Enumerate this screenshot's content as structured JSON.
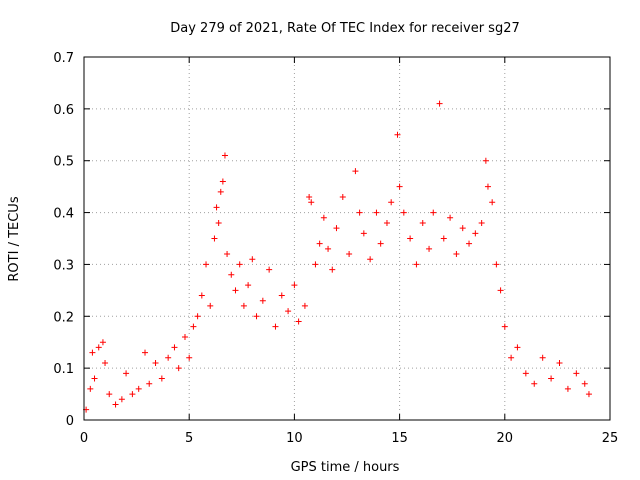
{
  "chart_data": {
    "type": "scatter",
    "title": "Day 279 of 2021, Rate Of TEC Index for receiver sg27",
    "xlabel": "GPS time / hours",
    "ylabel": "ROTI / TECUs",
    "xlim": [
      0,
      25
    ],
    "ylim": [
      0,
      0.7
    ],
    "xticks": [
      "0",
      "5",
      "10",
      "15",
      "20",
      "25"
    ],
    "yticks": [
      "0",
      "0.1",
      "0.2",
      "0.3",
      "0.4",
      "0.5",
      "0.6",
      "0.7"
    ],
    "grid": true,
    "marker": "+",
    "color": "#ff0000",
    "series": [
      {
        "name": "",
        "points": [
          [
            0.1,
            0.02
          ],
          [
            0.3,
            0.06
          ],
          [
            0.4,
            0.13
          ],
          [
            0.5,
            0.08
          ],
          [
            0.7,
            0.14
          ],
          [
            0.9,
            0.15
          ],
          [
            1.0,
            0.11
          ],
          [
            1.2,
            0.05
          ],
          [
            1.5,
            0.03
          ],
          [
            1.8,
            0.04
          ],
          [
            2.0,
            0.09
          ],
          [
            2.3,
            0.05
          ],
          [
            2.6,
            0.06
          ],
          [
            2.9,
            0.13
          ],
          [
            3.1,
            0.07
          ],
          [
            3.4,
            0.11
          ],
          [
            3.7,
            0.08
          ],
          [
            4.0,
            0.12
          ],
          [
            4.3,
            0.14
          ],
          [
            4.5,
            0.1
          ],
          [
            4.8,
            0.16
          ],
          [
            5.0,
            0.12
          ],
          [
            5.2,
            0.18
          ],
          [
            5.4,
            0.2
          ],
          [
            5.6,
            0.24
          ],
          [
            5.8,
            0.3
          ],
          [
            6.0,
            0.22
          ],
          [
            6.2,
            0.35
          ],
          [
            6.3,
            0.41
          ],
          [
            6.4,
            0.38
          ],
          [
            6.5,
            0.44
          ],
          [
            6.6,
            0.46
          ],
          [
            6.7,
            0.51
          ],
          [
            6.8,
            0.32
          ],
          [
            7.0,
            0.28
          ],
          [
            7.2,
            0.25
          ],
          [
            7.4,
            0.3
          ],
          [
            7.6,
            0.22
          ],
          [
            7.8,
            0.26
          ],
          [
            8.0,
            0.31
          ],
          [
            8.2,
            0.2
          ],
          [
            8.5,
            0.23
          ],
          [
            8.8,
            0.29
          ],
          [
            9.1,
            0.18
          ],
          [
            9.4,
            0.24
          ],
          [
            9.7,
            0.21
          ],
          [
            10.0,
            0.26
          ],
          [
            10.2,
            0.19
          ],
          [
            10.5,
            0.22
          ],
          [
            10.7,
            0.43
          ],
          [
            10.8,
            0.42
          ],
          [
            11.0,
            0.3
          ],
          [
            11.2,
            0.34
          ],
          [
            11.4,
            0.39
          ],
          [
            11.6,
            0.33
          ],
          [
            11.8,
            0.29
          ],
          [
            12.0,
            0.37
          ],
          [
            12.3,
            0.43
          ],
          [
            12.6,
            0.32
          ],
          [
            12.9,
            0.48
          ],
          [
            13.1,
            0.4
          ],
          [
            13.3,
            0.36
          ],
          [
            13.6,
            0.31
          ],
          [
            13.9,
            0.4
          ],
          [
            14.1,
            0.34
          ],
          [
            14.4,
            0.38
          ],
          [
            14.6,
            0.42
          ],
          [
            14.9,
            0.55
          ],
          [
            15.0,
            0.45
          ],
          [
            15.2,
            0.4
          ],
          [
            15.5,
            0.35
          ],
          [
            15.8,
            0.3
          ],
          [
            16.1,
            0.38
          ],
          [
            16.4,
            0.33
          ],
          [
            16.6,
            0.4
          ],
          [
            16.9,
            0.61
          ],
          [
            17.1,
            0.35
          ],
          [
            17.4,
            0.39
          ],
          [
            17.7,
            0.32
          ],
          [
            18.0,
            0.37
          ],
          [
            18.3,
            0.34
          ],
          [
            18.6,
            0.36
          ],
          [
            18.9,
            0.38
          ],
          [
            19.1,
            0.5
          ],
          [
            19.2,
            0.45
          ],
          [
            19.4,
            0.42
          ],
          [
            19.6,
            0.3
          ],
          [
            19.8,
            0.25
          ],
          [
            20.0,
            0.18
          ],
          [
            20.3,
            0.12
          ],
          [
            20.6,
            0.14
          ],
          [
            21.0,
            0.09
          ],
          [
            21.4,
            0.07
          ],
          [
            21.8,
            0.12
          ],
          [
            22.2,
            0.08
          ],
          [
            22.6,
            0.11
          ],
          [
            23.0,
            0.06
          ],
          [
            23.4,
            0.09
          ],
          [
            23.8,
            0.07
          ],
          [
            24.0,
            0.05
          ]
        ]
      }
    ]
  }
}
